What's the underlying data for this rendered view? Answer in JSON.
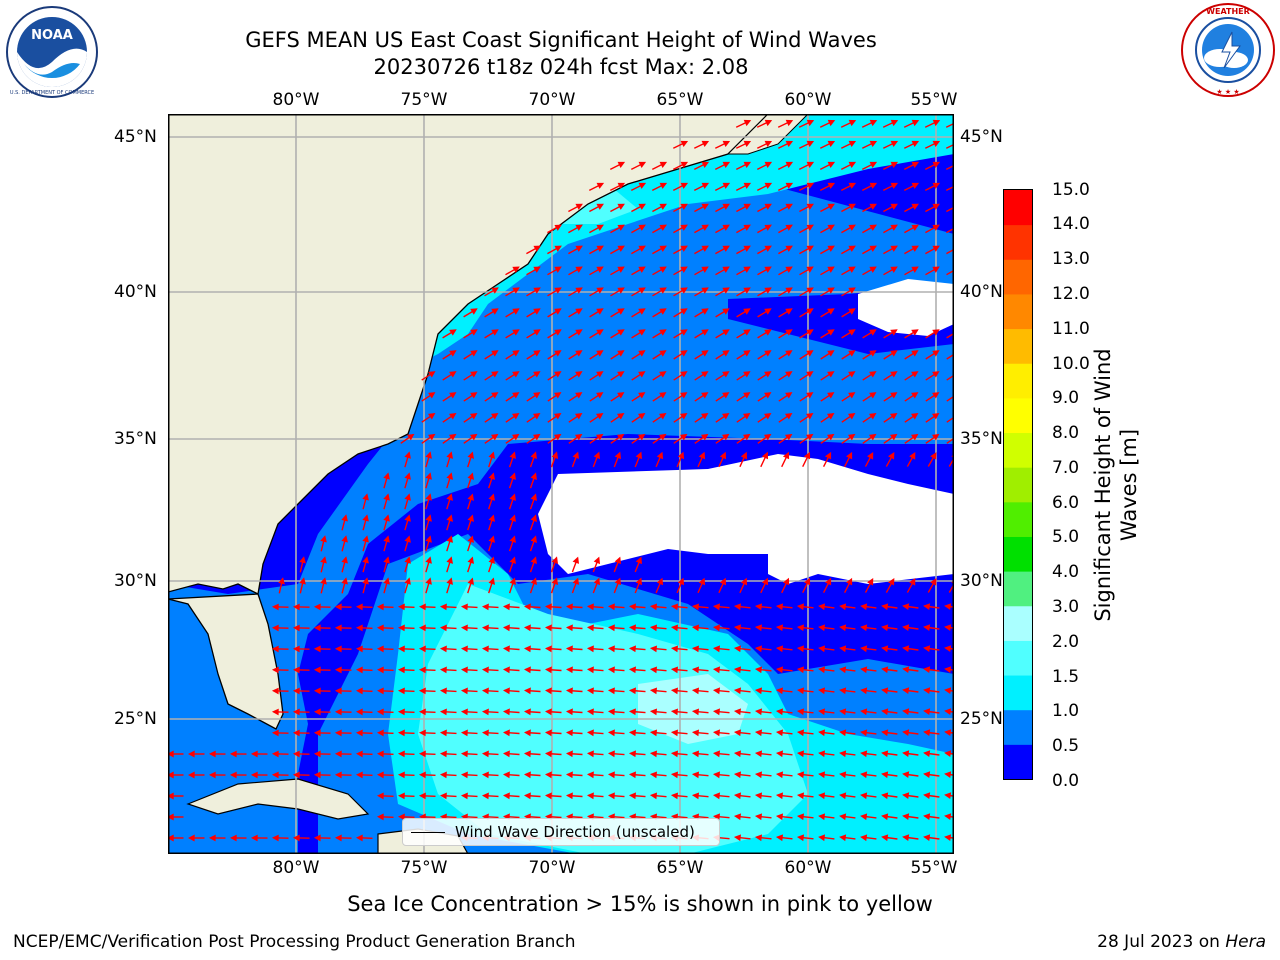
{
  "title": {
    "line1": "GEFS MEAN US East Coast Significant Height of Wind Waves",
    "line2": "20230726 t18z 024h fcst   Max: 2.08"
  },
  "logos": {
    "left": {
      "name": "NOAA",
      "ring_text": "NATIONAL OCEANIC AND ATMOSPHERIC ADMINISTRATION · U.S. DEPARTMENT OF COMMERCE"
    },
    "right": {
      "name": "NATIONAL WEATHER SERVICE"
    }
  },
  "map": {
    "lon_ticks": [
      "80°W",
      "75°W",
      "70°W",
      "65°W",
      "60°W",
      "55°W"
    ],
    "lat_ticks": [
      "45°N",
      "40°N",
      "35°N",
      "30°N",
      "25°N"
    ],
    "colors": {
      "land": "#efefdc",
      "coast": "#000000",
      "grid": "#b0b0b0",
      "arrow": "#ff0000"
    }
  },
  "legend": {
    "label": "Wind Wave Direction (unscaled)"
  },
  "colorbar": {
    "label": "Significant Height of Wind Waves [m]",
    "ticks": [
      "15.0",
      "14.0",
      "13.0",
      "12.0",
      "11.0",
      "10.0",
      "9.0",
      "8.0",
      "7.0",
      "6.0",
      "5.0",
      "4.0",
      "3.0",
      "2.0",
      "1.5",
      "1.0",
      "0.5",
      "0.0"
    ],
    "levels": [
      0,
      0.5,
      1.0,
      1.5,
      2.0,
      3.0,
      4.0,
      5.0,
      6.0,
      7.0,
      8.0,
      9.0,
      10.0,
      11.0,
      12.0,
      13.0,
      14.0,
      15.0
    ],
    "colors": [
      "#0000ff",
      "#0080ff",
      "#00f0ff",
      "#50ffff",
      "#aaffff",
      "#50f080",
      "#00e000",
      "#50ee00",
      "#a0ee00",
      "#d0ff00",
      "#ffff00",
      "#ffee00",
      "#ffbb00",
      "#ff8800",
      "#ff6600",
      "#ff3300",
      "#ff0000"
    ]
  },
  "note": "Sea Ice Concentration > 15% is shown in pink to yellow",
  "footer": {
    "left": "NCEP/EMC/Verification Post Processing Product Generation Branch",
    "date": "28 Jul 2023 on ",
    "machine": "Hera"
  }
}
